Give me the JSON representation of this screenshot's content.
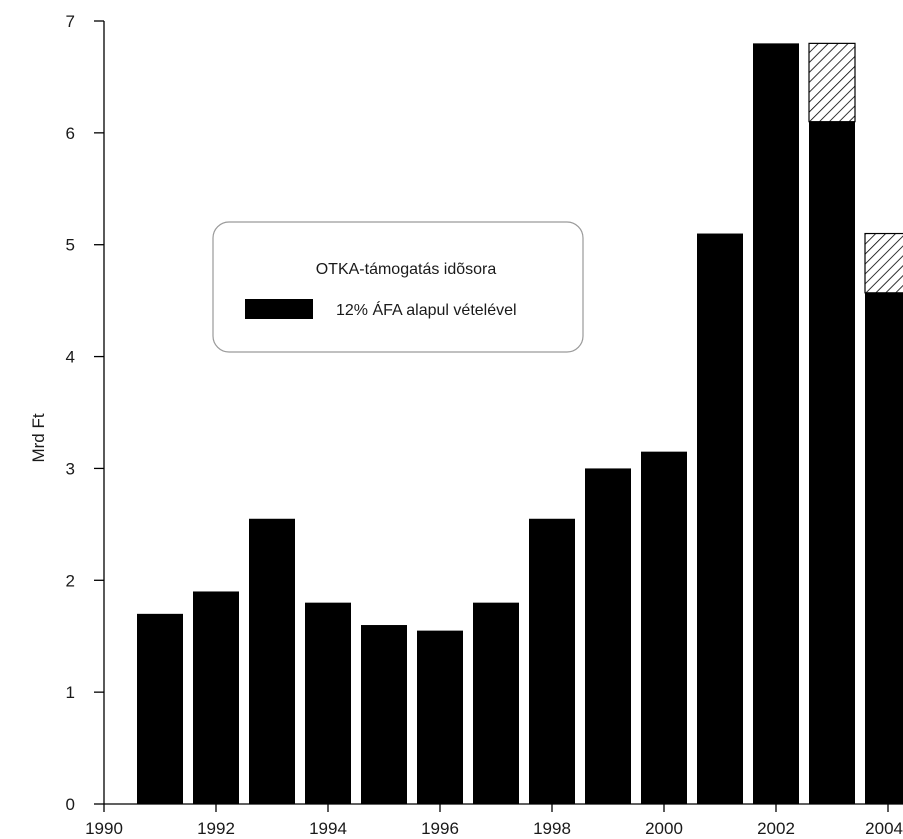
{
  "chart_data": {
    "type": "bar",
    "title": "",
    "xlabel": "",
    "ylabel": "Mrd Ft",
    "ylim": [
      0,
      7
    ],
    "xlim": [
      1990,
      2004
    ],
    "x_ticks": [
      1990,
      1992,
      1994,
      1996,
      1998,
      2000,
      2002,
      2004
    ],
    "y_ticks": [
      0,
      1,
      2,
      3,
      4,
      5,
      6,
      7
    ],
    "grid": false,
    "legend_position": "center-left",
    "legend": {
      "title": "OTKA-támogatás idõsora",
      "entries": [
        "12% ÁFA alapul vételével"
      ]
    },
    "bar_color": "#000000",
    "hatch_color": "#000000",
    "series": [
      {
        "name": "12% ÁFA alapul vételével",
        "x": [
          1991,
          1992,
          1993,
          1994,
          1995,
          1996,
          1997,
          1998,
          1999,
          2000,
          2001,
          2002,
          2003,
          2004
        ],
        "values": [
          1.7,
          1.9,
          2.55,
          1.8,
          1.6,
          1.55,
          1.8,
          2.55,
          3.0,
          3.15,
          5.1,
          6.8,
          6.1,
          4.57
        ]
      }
    ],
    "hatched_extensions": [
      {
        "x": 2003,
        "from": 6.1,
        "to": 6.8
      },
      {
        "x": 2004,
        "from": 4.57,
        "to": 5.1
      }
    ]
  }
}
